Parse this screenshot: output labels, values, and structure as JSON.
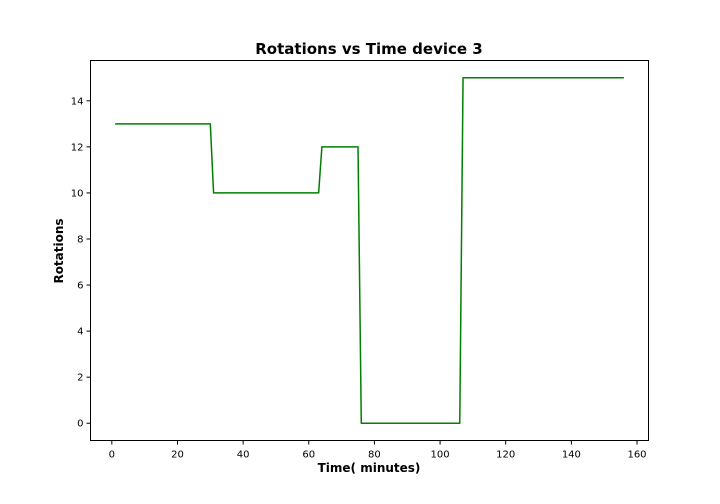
{
  "chart_data": {
    "type": "line",
    "title": "Rotations vs Time device 3",
    "xlabel": "Time( minutes)",
    "ylabel": "Rotations",
    "xlim": [
      -6.5,
      163.5
    ],
    "ylim": [
      -0.75,
      15.75
    ],
    "xticks": [
      0,
      20,
      40,
      60,
      80,
      100,
      120,
      140,
      160
    ],
    "yticks": [
      0,
      2,
      4,
      6,
      8,
      10,
      12,
      14
    ],
    "grid": false,
    "series": [
      {
        "color": "#007f00",
        "x": [
          1,
          30,
          31,
          63,
          64,
          75,
          76,
          106,
          107,
          156
        ],
        "y": [
          13,
          13,
          10,
          10,
          12,
          12,
          0,
          0,
          15,
          15
        ]
      }
    ]
  }
}
